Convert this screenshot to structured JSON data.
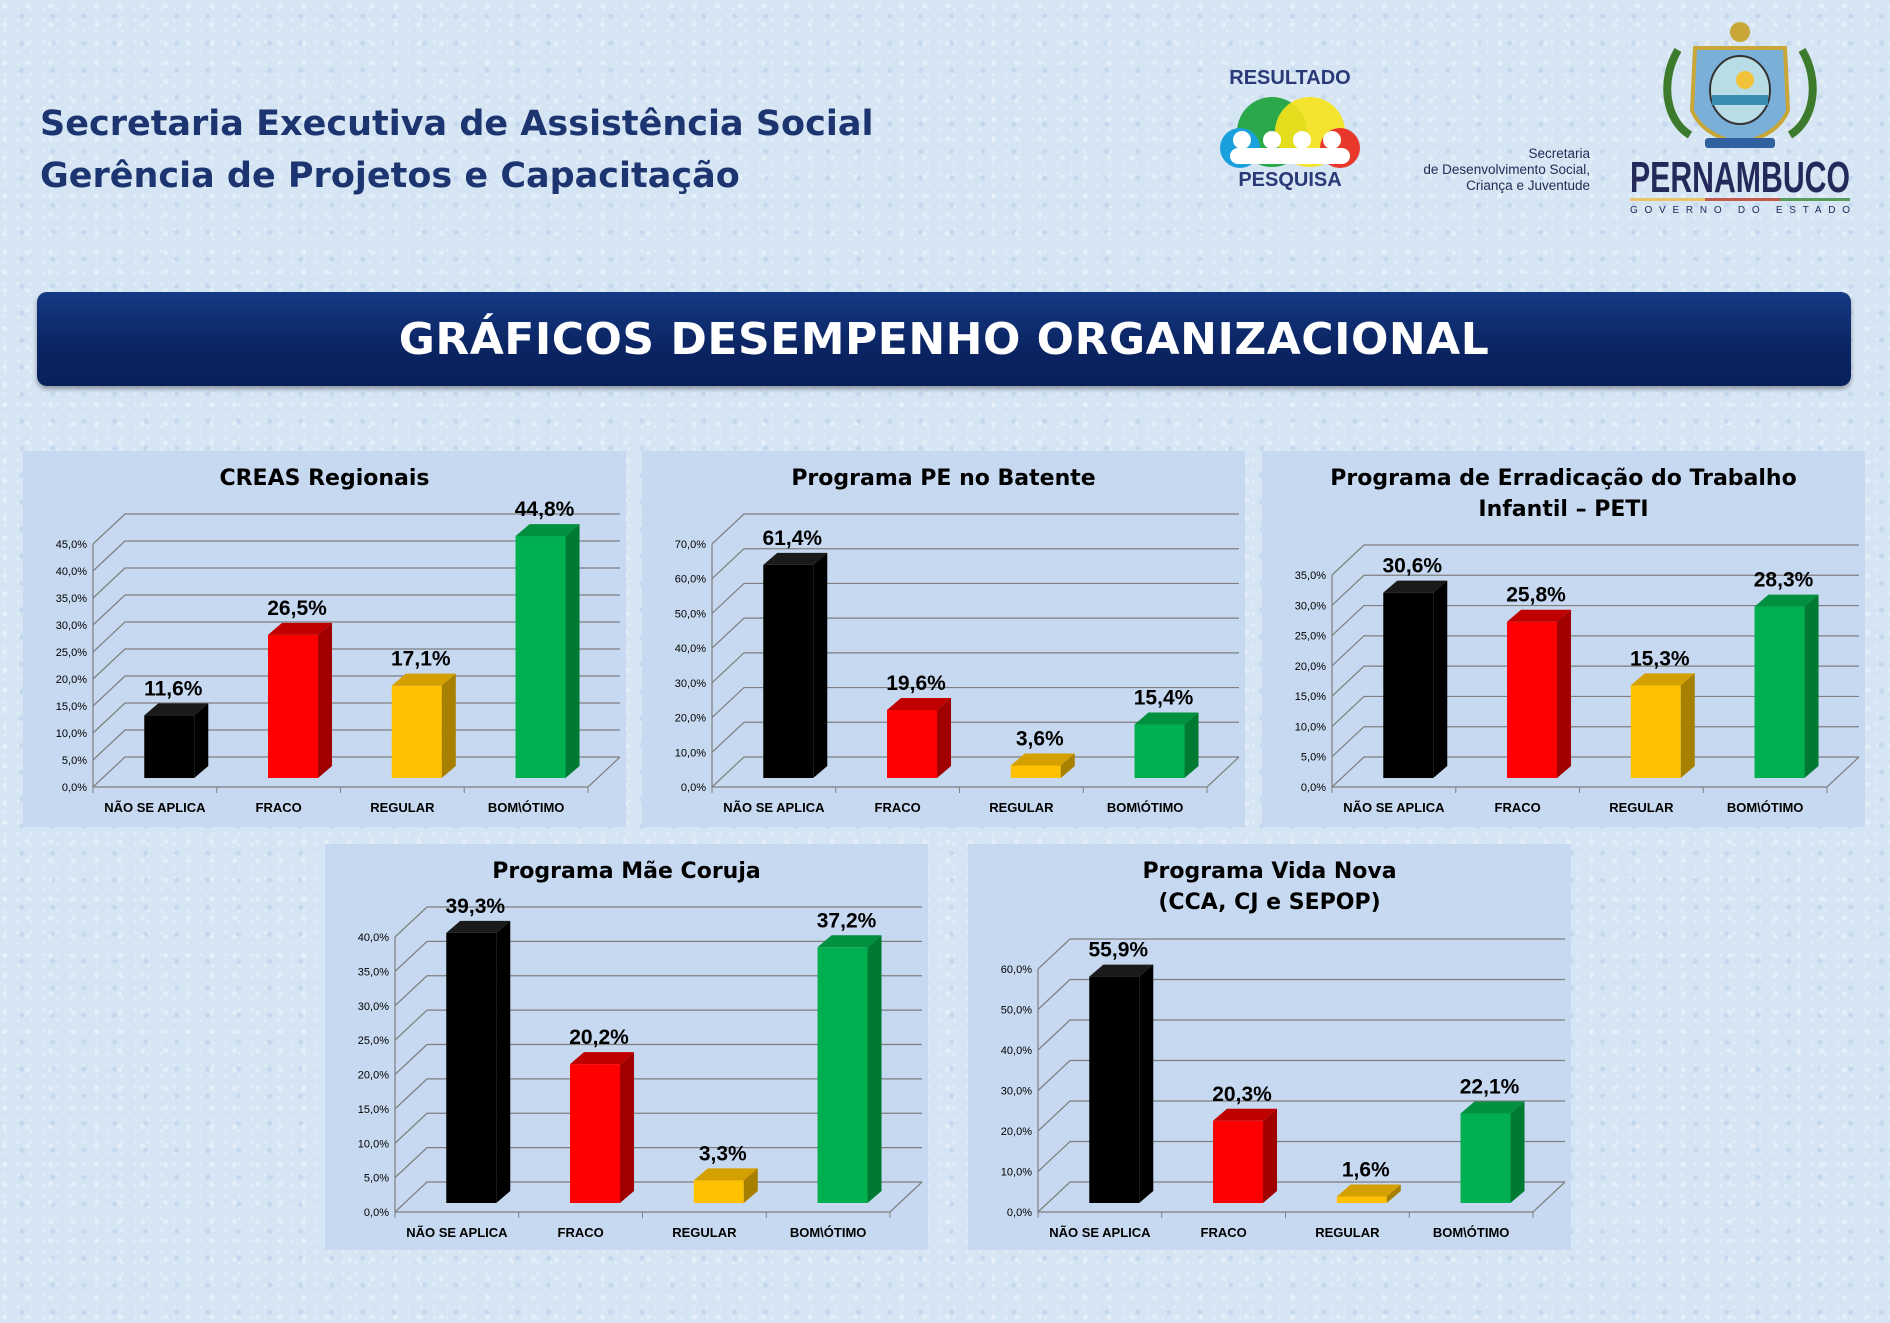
{
  "header": {
    "line1": "Secretaria Executiva de Assistência Social",
    "line2": "Gerência de Projetos e Capacitação",
    "banner": "GRÁFICOS DESEMPENHO ORGANIZACIONAL"
  },
  "logos": {
    "resultado_top": "RESULTADO",
    "resultado_bottom": "PESQUISA",
    "secretaria": [
      "Secretaria",
      "de Desenvolvimento Social,",
      "Criança e Juventude"
    ],
    "pernambuco": "PERNAMBUCO",
    "governo": "GOVERNO DO ESTADO"
  },
  "colors": {
    "nao_se_aplica": "#000000",
    "fraco": "#ff0000",
    "regular": "#ffc000",
    "bom_otimo": "#00b050",
    "panel": "#c6d9f0",
    "banner": "#0b2462"
  },
  "chart_data": [
    {
      "type": "bar",
      "title": [
        "CREAS Regionais"
      ],
      "categories": [
        "NÃO SE APLICA",
        "FRACO",
        "REGULAR",
        "BOM\\ÓTIMO"
      ],
      "values": [
        11.6,
        26.5,
        17.1,
        44.8
      ],
      "labels": [
        "11,6%",
        "26,5%",
        "17,1%",
        "44,8%"
      ],
      "ylim": [
        0,
        45
      ],
      "yticks": [
        "0,0%",
        "5,0%",
        "10,0%",
        "15,0%",
        "20,0%",
        "25,0%",
        "30,0%",
        "35,0%",
        "40,0%",
        "45,0%"
      ],
      "grid": true
    },
    {
      "type": "bar",
      "title": [
        "Programa PE no Batente"
      ],
      "categories": [
        "NÃO SE APLICA",
        "FRACO",
        "REGULAR",
        "BOM\\ÓTIMO"
      ],
      "values": [
        61.4,
        19.6,
        3.6,
        15.4
      ],
      "labels": [
        "61,4%",
        "19,6%",
        "3,6%",
        "15,4%"
      ],
      "ylim": [
        0,
        70
      ],
      "yticks": [
        "0,0%",
        "10,0%",
        "20,0%",
        "30,0%",
        "40,0%",
        "50,0%",
        "60,0%",
        "70,0%"
      ],
      "grid": true
    },
    {
      "type": "bar",
      "title": [
        "Programa de Erradicação do Trabalho",
        "Infantil – PETI"
      ],
      "categories": [
        "NÃO SE APLICA",
        "FRACO",
        "REGULAR",
        "BOM\\ÓTIMO"
      ],
      "values": [
        30.6,
        25.8,
        15.3,
        28.3
      ],
      "labels": [
        "30,6%",
        "25,8%",
        "15,3%",
        "28,3%"
      ],
      "ylim": [
        0,
        35
      ],
      "yticks": [
        "0,0%",
        "5,0%",
        "10,0%",
        "15,0%",
        "20,0%",
        "25,0%",
        "30,0%",
        "35,0%"
      ],
      "grid": true
    },
    {
      "type": "bar",
      "title": [
        "Programa Mãe Coruja"
      ],
      "categories": [
        "NÃO SE APLICA",
        "FRACO",
        "REGULAR",
        "BOM\\ÓTIMO"
      ],
      "values": [
        39.3,
        20.2,
        3.3,
        37.2
      ],
      "labels": [
        "39,3%",
        "20,2%",
        "3,3%",
        "37,2%"
      ],
      "ylim": [
        0,
        40
      ],
      "yticks": [
        "0,0%",
        "5,0%",
        "10,0%",
        "15,0%",
        "20,0%",
        "25,0%",
        "30,0%",
        "35,0%",
        "40,0%"
      ],
      "grid": true
    },
    {
      "type": "bar",
      "title": [
        "Programa Vida Nova",
        "(CCA, CJ e SEPOP)"
      ],
      "categories": [
        "NÃO SE APLICA",
        "FRACO",
        "REGULAR",
        "BOM\\ÓTIMO"
      ],
      "values": [
        55.9,
        20.3,
        1.6,
        22.1
      ],
      "labels": [
        "55,9%",
        "20,3%",
        "1,6%",
        "22,1%"
      ],
      "ylim": [
        0,
        60
      ],
      "yticks": [
        "0,0%",
        "10,0%",
        "20,0%",
        "30,0%",
        "40,0%",
        "50,0%",
        "60,0%"
      ],
      "grid": true
    }
  ]
}
